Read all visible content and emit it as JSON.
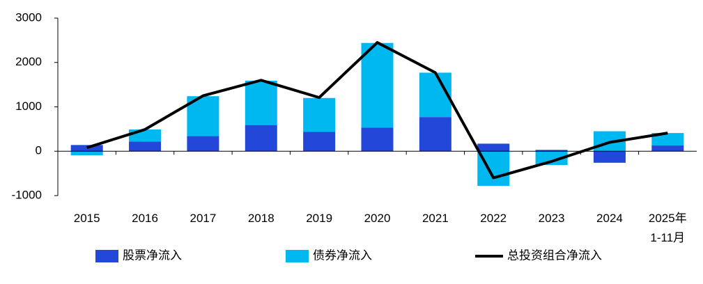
{
  "chart_data": {
    "type": "bar",
    "categories": [
      "2015",
      "2016",
      "2017",
      "2018",
      "2019",
      "2020",
      "2021",
      "2022",
      "2023",
      "2024",
      "2025年\n1-11月"
    ],
    "series": [
      {
        "name": "股票净流入",
        "type": "bar",
        "color": "#2347d8",
        "values": [
          140,
          220,
          340,
          590,
          440,
          530,
          770,
          170,
          30,
          -260,
          130
        ]
      },
      {
        "name": "债券净流入",
        "type": "bar",
        "color": "#00b8f0",
        "values": [
          -90,
          270,
          900,
          1000,
          760,
          1910,
          1000,
          -780,
          -310,
          450,
          280
        ]
      },
      {
        "name": "总投资组合净流入",
        "type": "line",
        "color": "#000000",
        "values": [
          80,
          490,
          1250,
          1600,
          1210,
          2450,
          1770,
          -600,
          -230,
          200,
          410
        ]
      }
    ],
    "ylim": [
      -1000,
      3000
    ],
    "yticks": [
      -1000,
      0,
      1000,
      2000,
      3000
    ],
    "stacked": true
  }
}
